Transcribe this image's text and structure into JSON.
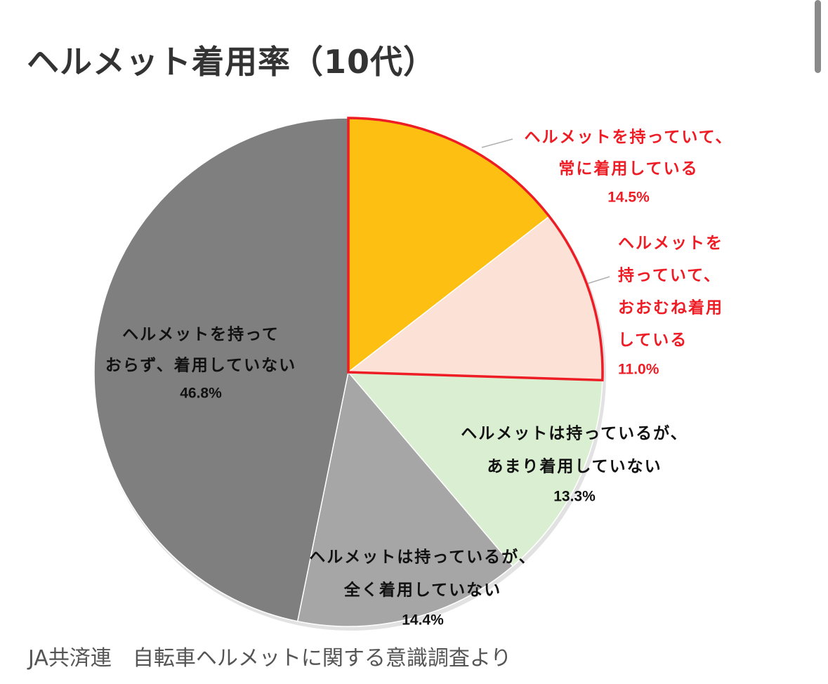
{
  "title": "ヘルメット着用率（10代）",
  "source": "JA共済連　自転車ヘルメットに関する意識調査より",
  "chart_data": {
    "type": "pie",
    "title": "ヘルメット着用率（10代）",
    "start_angle_deg": 0,
    "direction": "clockwise",
    "slices": [
      {
        "label_lines": [
          "ヘルメットを持っていて、",
          "常に着用している"
        ],
        "value": 14.5,
        "value_text": "14.5%",
        "color": "#FCBF12",
        "label_color": "#EE1C24",
        "highlight": true
      },
      {
        "label_lines": [
          "ヘルメットを",
          "持っていて、",
          "おおむね着用",
          "している"
        ],
        "value": 11.0,
        "value_text": "11.0%",
        "color": "#FBE1D6",
        "label_color": "#EE1C24",
        "highlight": true
      },
      {
        "label_lines": [
          "ヘルメットは持っているが、",
          "あまり着用していない"
        ],
        "value": 13.3,
        "value_text": "13.3%",
        "color": "#DAEFD1",
        "label_color": "#111111",
        "highlight": false
      },
      {
        "label_lines": [
          "ヘルメットは持っているが、",
          "全く着用していない"
        ],
        "value": 14.4,
        "value_text": "14.4%",
        "color": "#A6A6A6",
        "label_color": "#111111",
        "highlight": false
      },
      {
        "label_lines": [
          "ヘルメットを持って",
          "おらず、着用していない"
        ],
        "value": 46.8,
        "value_text": "46.8%",
        "color": "#7F7F7F",
        "label_color": "#111111",
        "highlight": false
      }
    ],
    "highlight_color": "#EE1C24"
  }
}
